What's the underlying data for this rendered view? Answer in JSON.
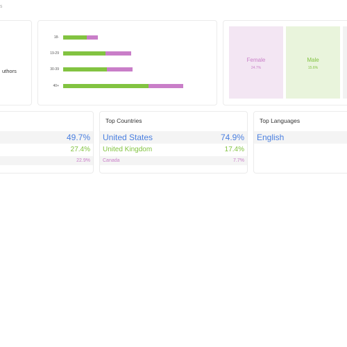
{
  "header": {
    "title_fragment": "S"
  },
  "left_card": {
    "text_fragment": "uthors"
  },
  "age_chart": {
    "rows": [
      {
        "label": "18-",
        "male": 34,
        "female": 16
      },
      {
        "label": "19-29",
        "male": 61,
        "female": 37
      },
      {
        "label": "30-39",
        "male": 63,
        "female": 37
      },
      {
        "label": "40+",
        "male": 123,
        "female": 50
      }
    ]
  },
  "gender": {
    "female": {
      "label": "Female",
      "percent": "24.7%",
      "bg": "#f3e6f3",
      "color": "#c97ec8"
    },
    "male": {
      "label": "Male",
      "percent": "15.6%",
      "bg": "#e9f4dc",
      "color": "#82c341"
    }
  },
  "left_table": {
    "rows": [
      {
        "name": "",
        "percent": "49.7%"
      },
      {
        "name": "",
        "percent": "27.4%"
      },
      {
        "name": "",
        "percent": "22.9%"
      }
    ]
  },
  "top_countries": {
    "title": "Top Countries",
    "rows": [
      {
        "name": "United States",
        "percent": "74.9%"
      },
      {
        "name": "United Kingdom",
        "percent": "17.4%"
      },
      {
        "name": "Canada",
        "percent": "7.7%"
      }
    ]
  },
  "top_languages": {
    "title": "Top Languages",
    "rows": [
      {
        "name": "English",
        "percent": ""
      }
    ]
  },
  "colors": {
    "blue": "#4a7fe0",
    "green": "#82c341",
    "purple": "#c97ec8"
  }
}
